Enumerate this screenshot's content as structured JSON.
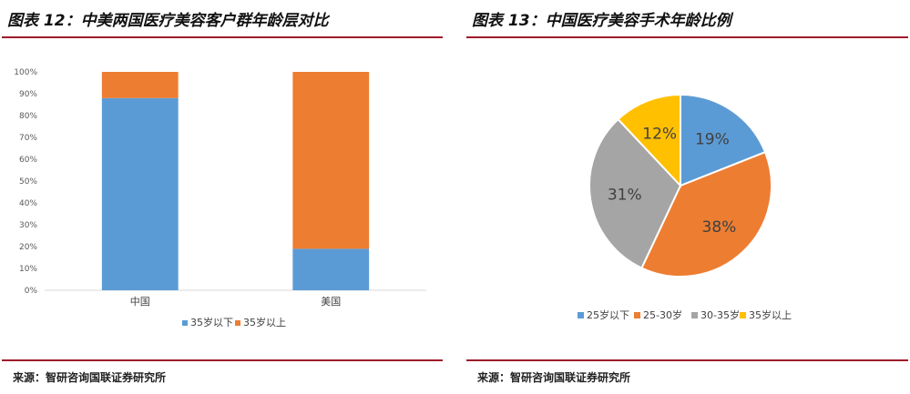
{
  "left_panel": {
    "title": "图表 12：中美两国医疗美容客户群年龄层对比",
    "source": "来源：智研咨询国联证券研究所"
  },
  "right_panel": {
    "title": "图表 13：中国医疗美容手术年龄比例",
    "source": "来源：智研咨询国联证券研究所"
  },
  "chart_data": [
    {
      "type": "bar",
      "stacked": true,
      "percent": true,
      "categories": [
        "中国",
        "美国"
      ],
      "series": [
        {
          "name": "35岁以下",
          "values": [
            88,
            19
          ],
          "color": "#5b9bd5"
        },
        {
          "name": "35岁以上",
          "values": [
            12,
            81
          ],
          "color": "#ed7d31"
        }
      ],
      "yticks": [
        "0%",
        "10%",
        "20%",
        "30%",
        "40%",
        "50%",
        "60%",
        "70%",
        "80%",
        "90%",
        "100%"
      ],
      "ylim": [
        0,
        100
      ],
      "grid": false,
      "legend": "bottom"
    },
    {
      "type": "pie",
      "slices": [
        {
          "label": "25岁以下",
          "value": 19,
          "display": "19%",
          "color": "#5b9bd5"
        },
        {
          "label": "25-30岁",
          "value": 38,
          "display": "38%",
          "color": "#ed7d31"
        },
        {
          "label": "30-35岁",
          "value": 31,
          "display": "31%",
          "color": "#a5a5a5"
        },
        {
          "label": "35岁以上",
          "value": 12,
          "display": "12%",
          "color": "#ffc000"
        }
      ],
      "start_angle": "12 o'clock",
      "direction": "clockwise",
      "legend": "bottom"
    }
  ]
}
